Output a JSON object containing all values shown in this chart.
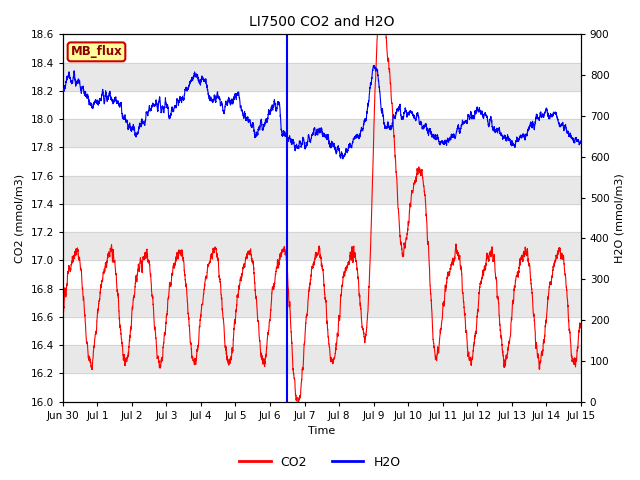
{
  "title": "LI7500 CO2 and H2O",
  "xlabel": "Time",
  "ylabel_left": "CO2 (mmol/m3)",
  "ylabel_right": "H2O (mmol/m3)",
  "co2_ylim": [
    16.0,
    18.6
  ],
  "h2o_ylim": [
    0,
    900
  ],
  "co2_color": "#ff0000",
  "h2o_color": "#0000ff",
  "co2_linewidth": 0.8,
  "h2o_linewidth": 0.8,
  "vline_x": 6.5,
  "vline_color": "#0000ff",
  "annotation_text": "MB_flux",
  "annotation_bg": "#ffff99",
  "annotation_border": "#cc0000",
  "plot_bg": "#ffffff",
  "band_color": "#e8e8e8",
  "tick_labels": [
    "Jun 30",
    "Jul 1",
    "Jul 2",
    "Jul 3",
    "Jul 4",
    "Jul 5",
    "Jul 6",
    "Jul 7",
    "Jul 8",
    "Jul 9",
    "Jul 10",
    "Jul 11",
    "Jul 12",
    "Jul 13",
    "Jul 14",
    "Jul 15"
  ],
  "tick_positions": [
    0,
    1,
    2,
    3,
    4,
    5,
    6,
    7,
    8,
    9,
    10,
    11,
    12,
    13,
    14,
    15
  ],
  "co2_ticks": [
    16.0,
    16.2,
    16.4,
    16.6,
    16.8,
    17.0,
    17.2,
    17.4,
    17.6,
    17.8,
    18.0,
    18.2,
    18.4,
    18.6
  ],
  "h2o_ticks": [
    0,
    100,
    200,
    300,
    400,
    500,
    600,
    700,
    800,
    900
  ],
  "xlim": [
    0,
    15
  ],
  "title_fontsize": 10,
  "axis_label_fontsize": 8,
  "tick_fontsize": 7.5,
  "legend_fontsize": 9
}
